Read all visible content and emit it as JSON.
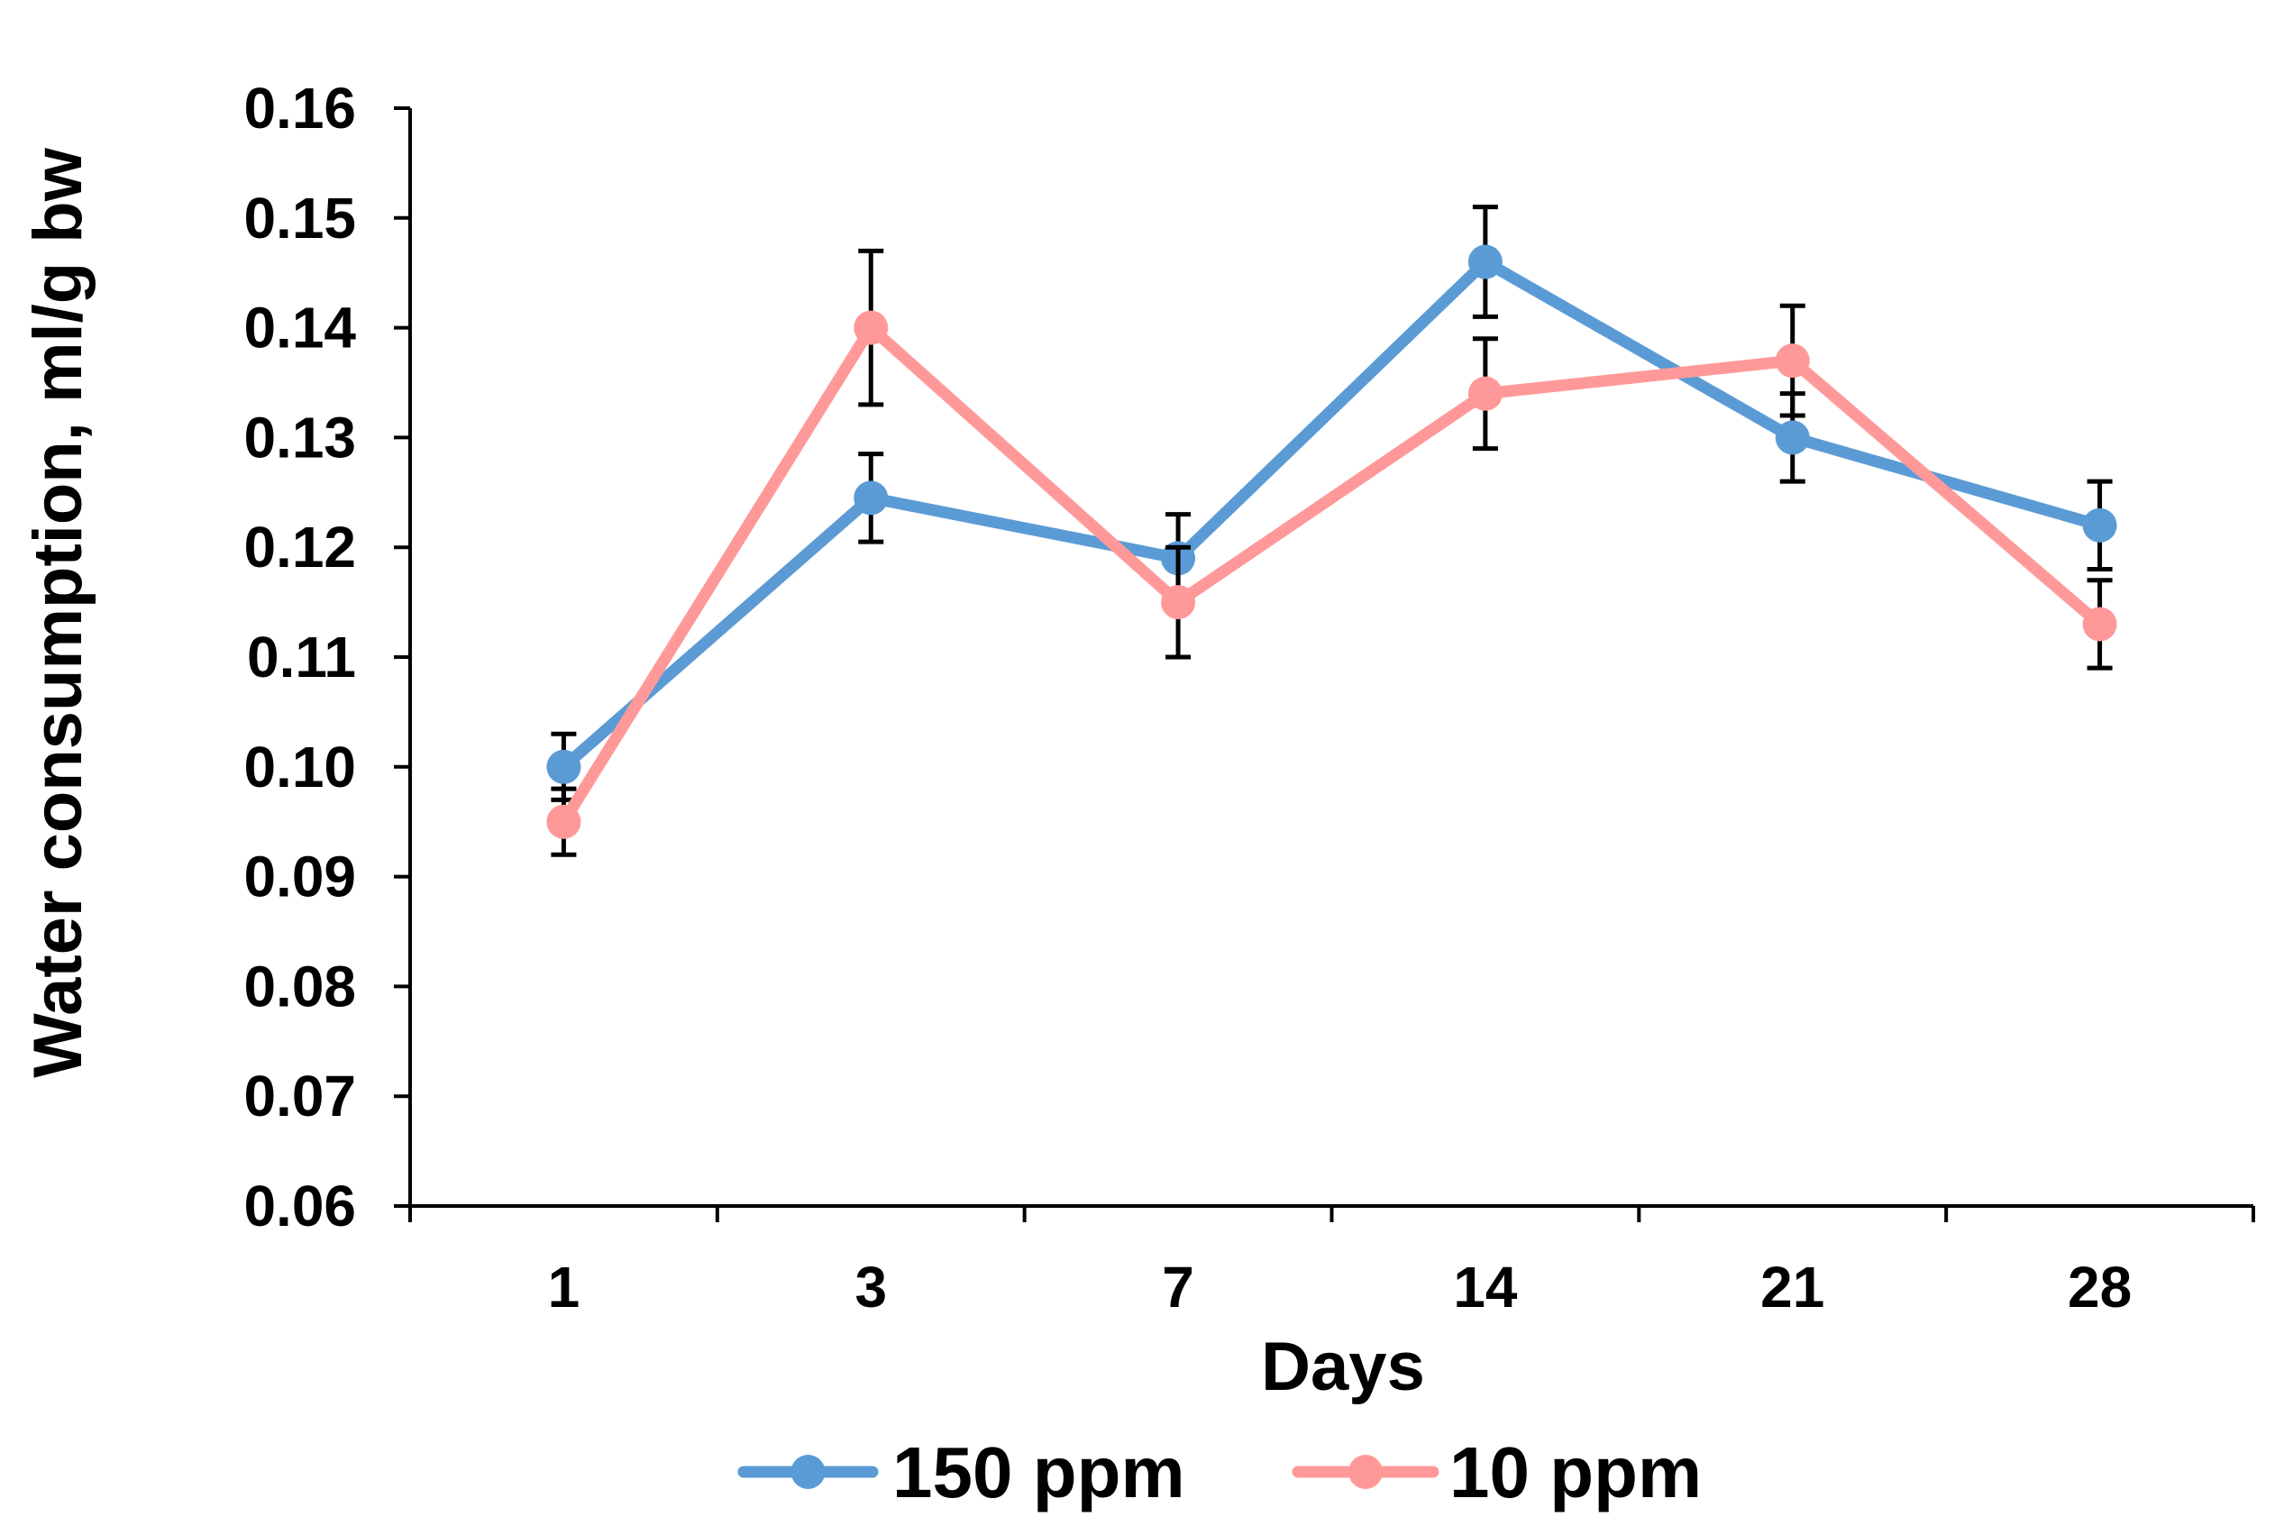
{
  "chart_data": {
    "type": "line",
    "title": "",
    "xlabel": "Days",
    "ylabel": "Water consumption,  ml/g bw",
    "categories": [
      "1",
      "3",
      "7",
      "14",
      "21",
      "28"
    ],
    "ylim": [
      0.06,
      0.16
    ],
    "yticks": [
      "0.06",
      "0.07",
      "0.08",
      "0.09",
      "0.10",
      "0.11",
      "0.12",
      "0.13",
      "0.14",
      "0.15",
      "0.16"
    ],
    "grid": false,
    "legend_position": "bottom",
    "series": [
      {
        "name": "150 ppm",
        "color": "#5b9bd5",
        "values": [
          0.1,
          0.1245,
          0.119,
          0.146,
          0.13,
          0.122
        ],
        "errors": [
          0.003,
          0.004,
          0.004,
          0.005,
          0.004,
          0.004
        ]
      },
      {
        "name": "10 ppm",
        "color": "#ff9999",
        "values": [
          0.095,
          0.14,
          0.115,
          0.134,
          0.137,
          0.113
        ],
        "errors": [
          0.003,
          0.007,
          0.005,
          0.005,
          0.005,
          0.004
        ]
      }
    ]
  }
}
